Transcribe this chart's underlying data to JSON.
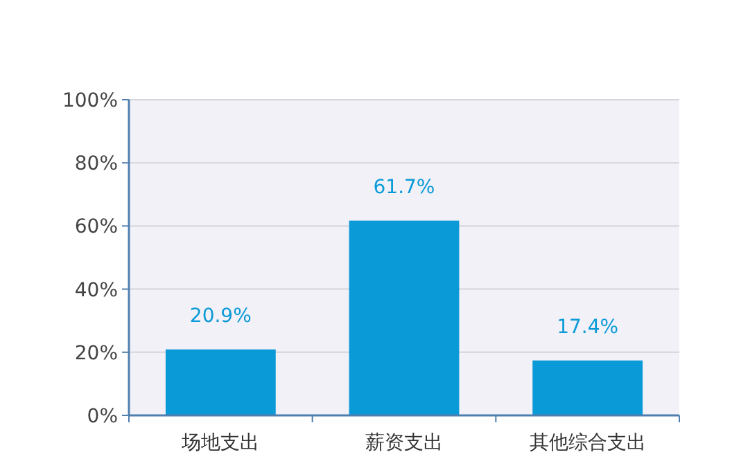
{
  "chart_data": {
    "type": "bar",
    "categories": [
      "场地支出",
      "薪资支出",
      "其他综合支出"
    ],
    "values": [
      20.9,
      61.7,
      17.4
    ],
    "value_labels": [
      "20.9%",
      "61.7%",
      "17.4%"
    ],
    "color": "#0b9ad8",
    "ylim": [
      0,
      100
    ],
    "yticks": [
      {
        "value": 0,
        "label": "0%"
      },
      {
        "value": 20,
        "label": "20%"
      },
      {
        "value": 40,
        "label": "40%"
      },
      {
        "value": 60,
        "label": "60%"
      },
      {
        "value": 80,
        "label": "80%"
      },
      {
        "value": 100,
        "label": "100%"
      }
    ],
    "grid": "y"
  }
}
